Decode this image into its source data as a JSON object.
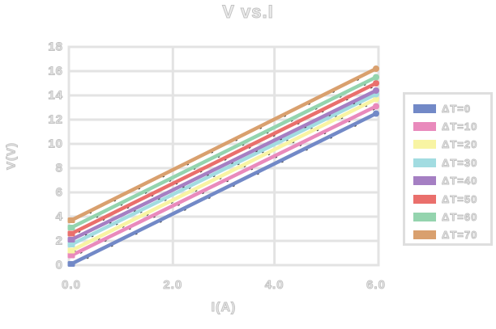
{
  "chart_data": {
    "type": "line",
    "title": "V vs.I",
    "xlabel": "I(A)",
    "ylabel": "V(V)",
    "xlim": [
      0,
      6
    ],
    "ylim": [
      0,
      18
    ],
    "x_ticks": [
      {
        "value": 0,
        "label": "0.0"
      },
      {
        "value": 2,
        "label": "2.0"
      },
      {
        "value": 4,
        "label": "4.0"
      },
      {
        "value": 6,
        "label": "6.0"
      }
    ],
    "y_ticks": [
      {
        "value": 0,
        "label": "0"
      },
      {
        "value": 2,
        "label": "2"
      },
      {
        "value": 4,
        "label": "4"
      },
      {
        "value": 6,
        "label": "6"
      },
      {
        "value": 8,
        "label": "8"
      },
      {
        "value": 10,
        "label": "10"
      },
      {
        "value": 12,
        "label": "12"
      },
      {
        "value": 14,
        "label": "14"
      },
      {
        "value": 16,
        "label": "16"
      },
      {
        "value": 18,
        "label": "18"
      }
    ],
    "grid": true,
    "legend_position": "right",
    "series": [
      {
        "name": "ΔT=0",
        "color": "#7289c7",
        "x": [
          0,
          6
        ],
        "y": [
          0.1,
          12.5
        ]
      },
      {
        "name": "ΔT=10",
        "color": "#e98abc",
        "x": [
          0,
          6
        ],
        "y": [
          0.8,
          13.1
        ]
      },
      {
        "name": "ΔT=20",
        "color": "#f8f4a3",
        "x": [
          0,
          6
        ],
        "y": [
          1.2,
          13.7
        ]
      },
      {
        "name": "ΔT=30",
        "color": "#a2dce1",
        "x": [
          0,
          6
        ],
        "y": [
          1.7,
          14.1
        ]
      },
      {
        "name": "ΔT=40",
        "color": "#a57fc3",
        "x": [
          0,
          6
        ],
        "y": [
          2.1,
          14.4
        ]
      },
      {
        "name": "ΔT=50",
        "color": "#ea6f6c",
        "x": [
          0,
          6
        ],
        "y": [
          2.6,
          15.0
        ]
      },
      {
        "name": "ΔT=60",
        "color": "#94d4ae",
        "x": [
          0,
          6
        ],
        "y": [
          3.1,
          15.5
        ]
      },
      {
        "name": "ΔT=70",
        "color": "#d9a06e",
        "x": [
          0,
          6
        ],
        "y": [
          3.7,
          16.2
        ]
      }
    ],
    "style": {
      "grid_color": "#e3e3e3",
      "text_outline_color": "#c2c2c2",
      "text_fill_color": "#ededed",
      "background": "#ffffff"
    }
  }
}
